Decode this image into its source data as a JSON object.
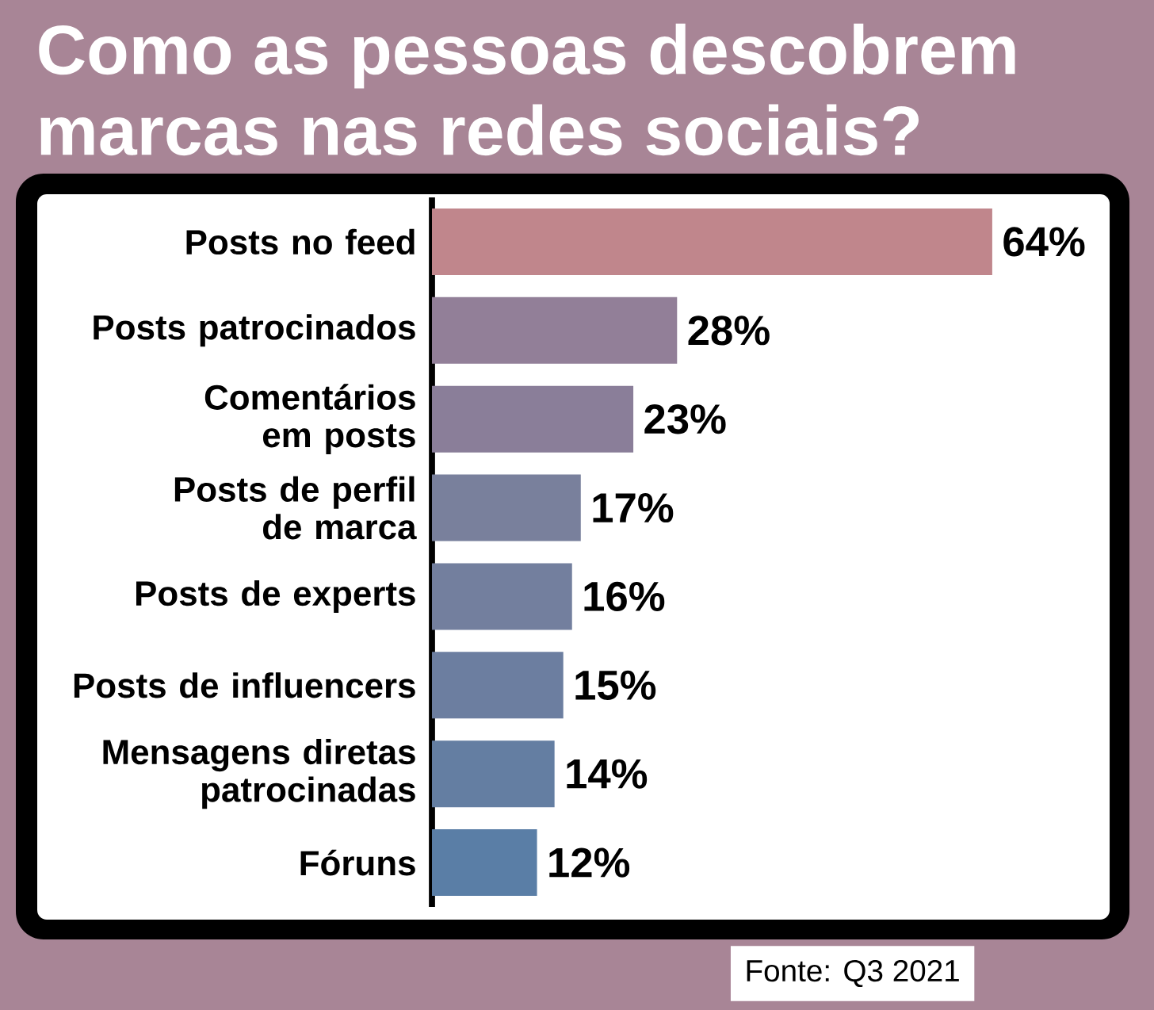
{
  "chart_data": {
    "type": "bar",
    "orientation": "horizontal",
    "title": "Como as pessoas descobrem marcas nas redes sociais?",
    "categories": [
      "Posts no feed",
      "Posts patrocinados",
      "Comentários em posts",
      "Posts de perfil de marca",
      "Posts de experts",
      "Posts de influencers",
      "Mensagens diretas patrocinadas",
      "Fóruns"
    ],
    "values": [
      64,
      28,
      23,
      17,
      16,
      15,
      14,
      12
    ],
    "value_labels": [
      "64%",
      "28%",
      "23%",
      "17%",
      "16%",
      "15%",
      "14%",
      "12%"
    ],
    "colors": [
      "#c0868c",
      "#927f98",
      "#8a7e99",
      "#79809c",
      "#737f9e",
      "#6c7ea0",
      "#647ea2",
      "#5a7ea6"
    ],
    "annotations": [
      "Fonte: Q3 2021"
    ]
  }
}
